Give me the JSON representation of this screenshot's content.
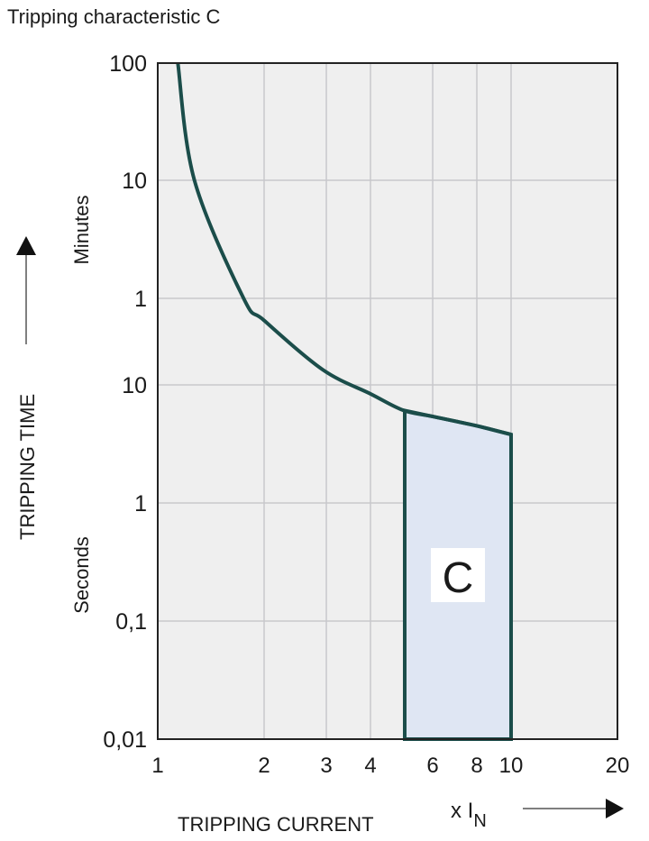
{
  "chart_data": {
    "type": "line",
    "title": "Tripping characteristic C",
    "xlabel": "TRIPPING CURRENT",
    "xunit": "x I",
    "xunit_sub": "N",
    "ylabel": "TRIPPING TIME",
    "y_sections": [
      "Minutes",
      "Seconds"
    ],
    "x_scale": "log",
    "y_scale": "log",
    "xlim": [
      1,
      20
    ],
    "ylim_seconds": [
      0.01,
      6000
    ],
    "grid": true,
    "x_ticks": [
      {
        "value": 1,
        "label": "1"
      },
      {
        "value": 2,
        "label": "2"
      },
      {
        "value": 3,
        "label": "3"
      },
      {
        "value": 4,
        "label": "4"
      },
      {
        "value": 6,
        "label": "6"
      },
      {
        "value": 8,
        "label": "8"
      },
      {
        "value": 10,
        "label": "10"
      },
      {
        "value": 20,
        "label": "20"
      }
    ],
    "y_ticks": [
      {
        "seconds": 6000,
        "label": "100"
      },
      {
        "seconds": 600,
        "label": "10"
      },
      {
        "seconds": 60,
        "label": "1"
      },
      {
        "seconds": 10,
        "label": "10"
      },
      {
        "seconds": 1,
        "label": "1"
      },
      {
        "seconds": 0.1,
        "label": "0,1"
      },
      {
        "seconds": 0.01,
        "label": "0,01"
      }
    ],
    "curve": {
      "x": [
        1.14,
        1.27,
        1.75,
        2.0,
        2.93,
        4.0,
        4.95,
        6.0,
        8.0,
        10.0
      ],
      "seconds": [
        6000,
        600,
        60,
        38,
        13.7,
        8.4,
        6.1,
        5.4,
        4.5,
        3.8
      ]
    },
    "region": {
      "label": "C",
      "x_from": 5,
      "x_to": 10,
      "seconds_min": 0.01
    },
    "colors": {
      "curve": "#1b4d4a",
      "region_fill": "#dfe6f3",
      "plot_bg": "#efefef",
      "grid": "#c8c8cc"
    }
  }
}
